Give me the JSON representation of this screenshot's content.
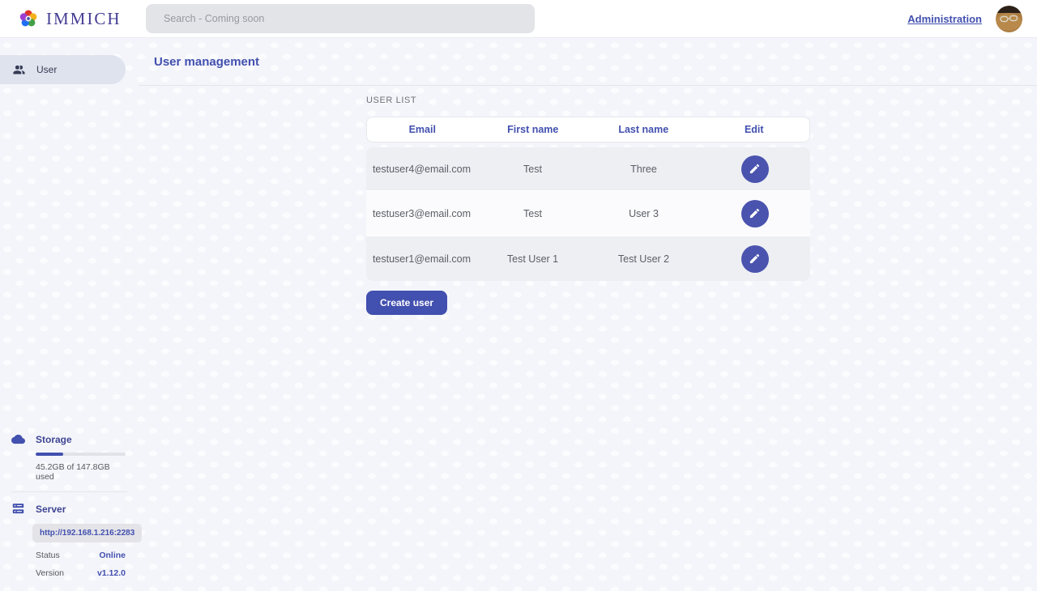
{
  "topbar": {
    "brand": "IMMICH",
    "search_placeholder": "Search - Coming soon",
    "admin_link": "Administration"
  },
  "sidebar": {
    "items": [
      {
        "label": "User",
        "icon": "users-icon",
        "selected": true
      }
    ],
    "storage": {
      "title": "Storage",
      "icon": "cloud-icon",
      "usage_text": "45.2GB of 147.8GB used",
      "percent_used": 30.6
    },
    "server": {
      "title": "Server",
      "icon": "server-icon",
      "url": "http://192.168.1.216:2283",
      "rows": [
        {
          "label": "Status",
          "value": "Online"
        },
        {
          "label": "Version",
          "value": "v1.12.0"
        }
      ]
    }
  },
  "main": {
    "page_title": "User management",
    "section_title": "USER LIST",
    "table": {
      "headers": [
        "Email",
        "First name",
        "Last name",
        "Edit"
      ],
      "rows": [
        {
          "email": "testuser4@email.com",
          "first_name": "Test",
          "last_name": "Three"
        },
        {
          "email": "testuser3@email.com",
          "first_name": "Test",
          "last_name": "User 3"
        },
        {
          "email": "testuser1@email.com",
          "first_name": "Test User 1",
          "last_name": "Test User 2"
        }
      ]
    },
    "create_button": "Create user"
  },
  "icons": [
    "immich-flower-logo-icon",
    "users-icon",
    "cloud-icon",
    "server-icon",
    "pencil-icon"
  ],
  "colors": {
    "primary": "#4250af",
    "topbar_bg": "#ffffff",
    "page_bg": "#f4f5fa",
    "selected_pill_bg": "#dfe3ee",
    "row_alt_bg": "#edeff3",
    "search_bg": "#e3e4e8",
    "status_online": "#4250af"
  }
}
